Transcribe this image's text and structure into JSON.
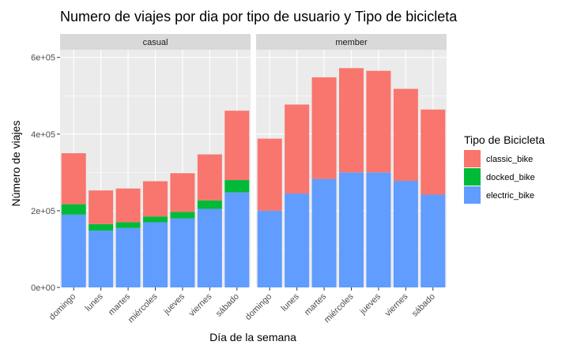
{
  "chart_data": {
    "type": "bar",
    "stacked": true,
    "title": "Numero de viajes por dia por tipo de usuario y Tipo de bicicleta",
    "xlabel": "Día de la semana",
    "ylabel": "Número de viajes",
    "ylim": [
      0,
      620000
    ],
    "yticks": [
      0,
      200000,
      400000,
      600000
    ],
    "ytick_labels": [
      "0e+00",
      "2e+05",
      "4e+05",
      "6e+05"
    ],
    "categories": [
      "domingo",
      "lunes",
      "martes",
      "miércoles",
      "jueves",
      "viernes",
      "sábado"
    ],
    "legend": {
      "title": "Tipo de Bicicleta",
      "position": "right",
      "entries": [
        "classic_bike",
        "docked_bike",
        "electric_bike"
      ]
    },
    "colors": {
      "classic_bike": "#F8766D",
      "docked_bike": "#00BA38",
      "electric_bike": "#619CFF",
      "panel_bg": "#EBEBEB",
      "strip_bg": "#D9D9D9",
      "grid": "#FFFFFF"
    },
    "grid": true,
    "facets": [
      {
        "name": "casual",
        "series": [
          {
            "name": "electric_bike",
            "values": [
              190000,
              148000,
              155000,
              170000,
              180000,
              205000,
              248000
            ]
          },
          {
            "name": "docked_bike",
            "values": [
              27000,
              17000,
              15000,
              15000,
              17000,
              22000,
              32000
            ]
          },
          {
            "name": "classic_bike",
            "values": [
              133000,
              88000,
              88000,
              92000,
              101000,
              120000,
              181000
            ]
          }
        ]
      },
      {
        "name": "member",
        "series": [
          {
            "name": "electric_bike",
            "values": [
              200000,
              245000,
              283000,
              300000,
              300000,
              278000,
              242000
            ]
          },
          {
            "name": "docked_bike",
            "values": [
              0,
              0,
              0,
              0,
              0,
              0,
              0
            ]
          },
          {
            "name": "classic_bike",
            "values": [
              188000,
              232000,
              265000,
              272000,
              265000,
              240000,
              222000
            ]
          }
        ]
      }
    ]
  }
}
